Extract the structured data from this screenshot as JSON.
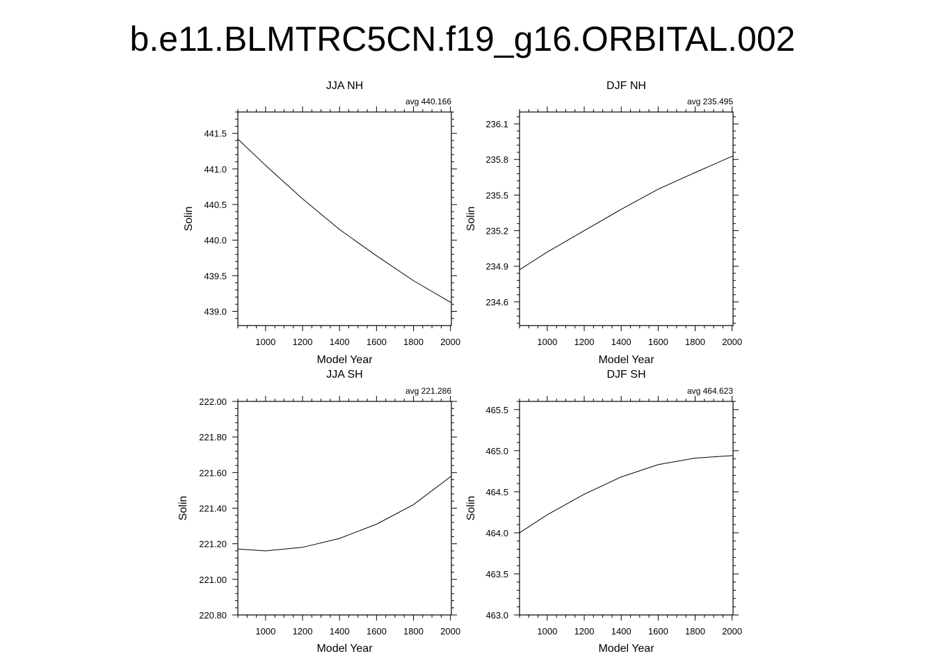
{
  "page": {
    "title": "b.e11.BLMTRC5CN.f19_g16.ORBITAL.002"
  },
  "chart_data": [
    {
      "type": "line",
      "title": "JJA NH",
      "annotation": "avg 440.166",
      "xlabel": "Model Year",
      "ylabel": "Solin",
      "xlim": [
        850,
        2005
      ],
      "ylim": [
        438.8,
        441.8
      ],
      "xticks": [
        1000,
        1200,
        1400,
        1600,
        1800,
        2000
      ],
      "xtick_labels": [
        "1000",
        "1200",
        "1400",
        "1600",
        "1800",
        "2000"
      ],
      "yticks": [
        439.0,
        439.5,
        440.0,
        440.5,
        441.0,
        441.5
      ],
      "ytick_labels": [
        "439.0",
        "439.5",
        "440.0",
        "440.5",
        "441.0",
        "441.5"
      ],
      "grid": false,
      "series": [
        {
          "x": [
            850,
            1000,
            1200,
            1400,
            1600,
            1800,
            2005
          ],
          "y": [
            441.42,
            441.05,
            440.58,
            440.15,
            439.78,
            439.43,
            439.12
          ]
        }
      ]
    },
    {
      "type": "line",
      "title": "DJF NH",
      "annotation": "avg 235.495",
      "xlabel": "Model Year",
      "ylabel": "Solin",
      "xlim": [
        850,
        2005
      ],
      "ylim": [
        234.4,
        236.2
      ],
      "xticks": [
        1000,
        1200,
        1400,
        1600,
        1800,
        2000
      ],
      "xtick_labels": [
        "1000",
        "1200",
        "1400",
        "1600",
        "1800",
        "2000"
      ],
      "yticks": [
        234.6,
        234.9,
        235.2,
        235.5,
        235.8,
        236.1
      ],
      "ytick_labels": [
        "234.6",
        "234.9",
        "235.2",
        "235.5",
        "235.8",
        "236.1"
      ],
      "grid": false,
      "series": [
        {
          "x": [
            850,
            1000,
            1200,
            1400,
            1600,
            1800,
            2005
          ],
          "y": [
            234.87,
            235.02,
            235.2,
            235.38,
            235.55,
            235.69,
            235.83
          ]
        }
      ]
    },
    {
      "type": "line",
      "title": "JJA SH",
      "annotation": "avg 221.286",
      "xlabel": "Model Year",
      "ylabel": "Solin",
      "xlim": [
        850,
        2005
      ],
      "ylim": [
        220.8,
        222.0
      ],
      "xticks": [
        1000,
        1200,
        1400,
        1600,
        1800,
        2000
      ],
      "xtick_labels": [
        "1000",
        "1200",
        "1400",
        "1600",
        "1800",
        "2000"
      ],
      "yticks": [
        220.8,
        221.0,
        221.2,
        221.4,
        221.6,
        221.8,
        222.0
      ],
      "ytick_labels": [
        "220.80",
        "221.00",
        "221.20",
        "221.40",
        "221.60",
        "221.80",
        "222.00"
      ],
      "grid": false,
      "series": [
        {
          "x": [
            850,
            1000,
            1200,
            1400,
            1600,
            1800,
            2005
          ],
          "y": [
            221.17,
            221.16,
            221.18,
            221.23,
            221.31,
            221.42,
            221.58
          ]
        }
      ]
    },
    {
      "type": "line",
      "title": "DJF SH",
      "annotation": "avg 464.623",
      "xlabel": "Model Year",
      "ylabel": "Solin",
      "xlim": [
        850,
        2005
      ],
      "ylim": [
        463.0,
        465.6
      ],
      "xticks": [
        1000,
        1200,
        1400,
        1600,
        1800,
        2000
      ],
      "xtick_labels": [
        "1000",
        "1200",
        "1400",
        "1600",
        "1800",
        "2000"
      ],
      "yticks": [
        463.0,
        463.5,
        464.0,
        464.5,
        465.0,
        465.5
      ],
      "ytick_labels": [
        "463.0",
        "463.5",
        "464.0",
        "464.5",
        "465.0",
        "465.5"
      ],
      "grid": false,
      "series": [
        {
          "x": [
            850,
            1000,
            1200,
            1400,
            1600,
            1800,
            2005
          ],
          "y": [
            464.0,
            464.22,
            464.47,
            464.68,
            464.83,
            464.91,
            464.94
          ]
        }
      ]
    }
  ]
}
